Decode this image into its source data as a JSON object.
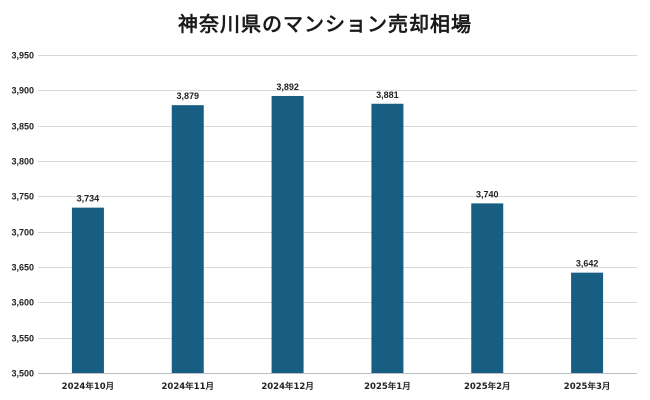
{
  "chart_data": {
    "type": "bar",
    "title": "神奈川県のマンション売却相場",
    "categories": [
      "2024年10月",
      "2024年11月",
      "2024年12月",
      "2025年1月",
      "2025年2月",
      "2025年3月"
    ],
    "values": [
      3734,
      3879,
      3892,
      3881,
      3740,
      3642
    ],
    "value_labels": [
      "3,734",
      "3,879",
      "3,892",
      "3,881",
      "3,740",
      "3,642"
    ],
    "ylim": [
      3500,
      3950
    ],
    "yticks": [
      3500,
      3550,
      3600,
      3650,
      3700,
      3750,
      3800,
      3850,
      3900,
      3950
    ],
    "ytick_labels": [
      "3,500",
      "3,550",
      "3,600",
      "3,650",
      "3,700",
      "3,750",
      "3,800",
      "3,850",
      "3,900",
      "3,950"
    ],
    "grid": true,
    "colors": {
      "bar": "#175e82",
      "grid": "#d9d9d9",
      "axis": "#bfbfbf"
    }
  }
}
